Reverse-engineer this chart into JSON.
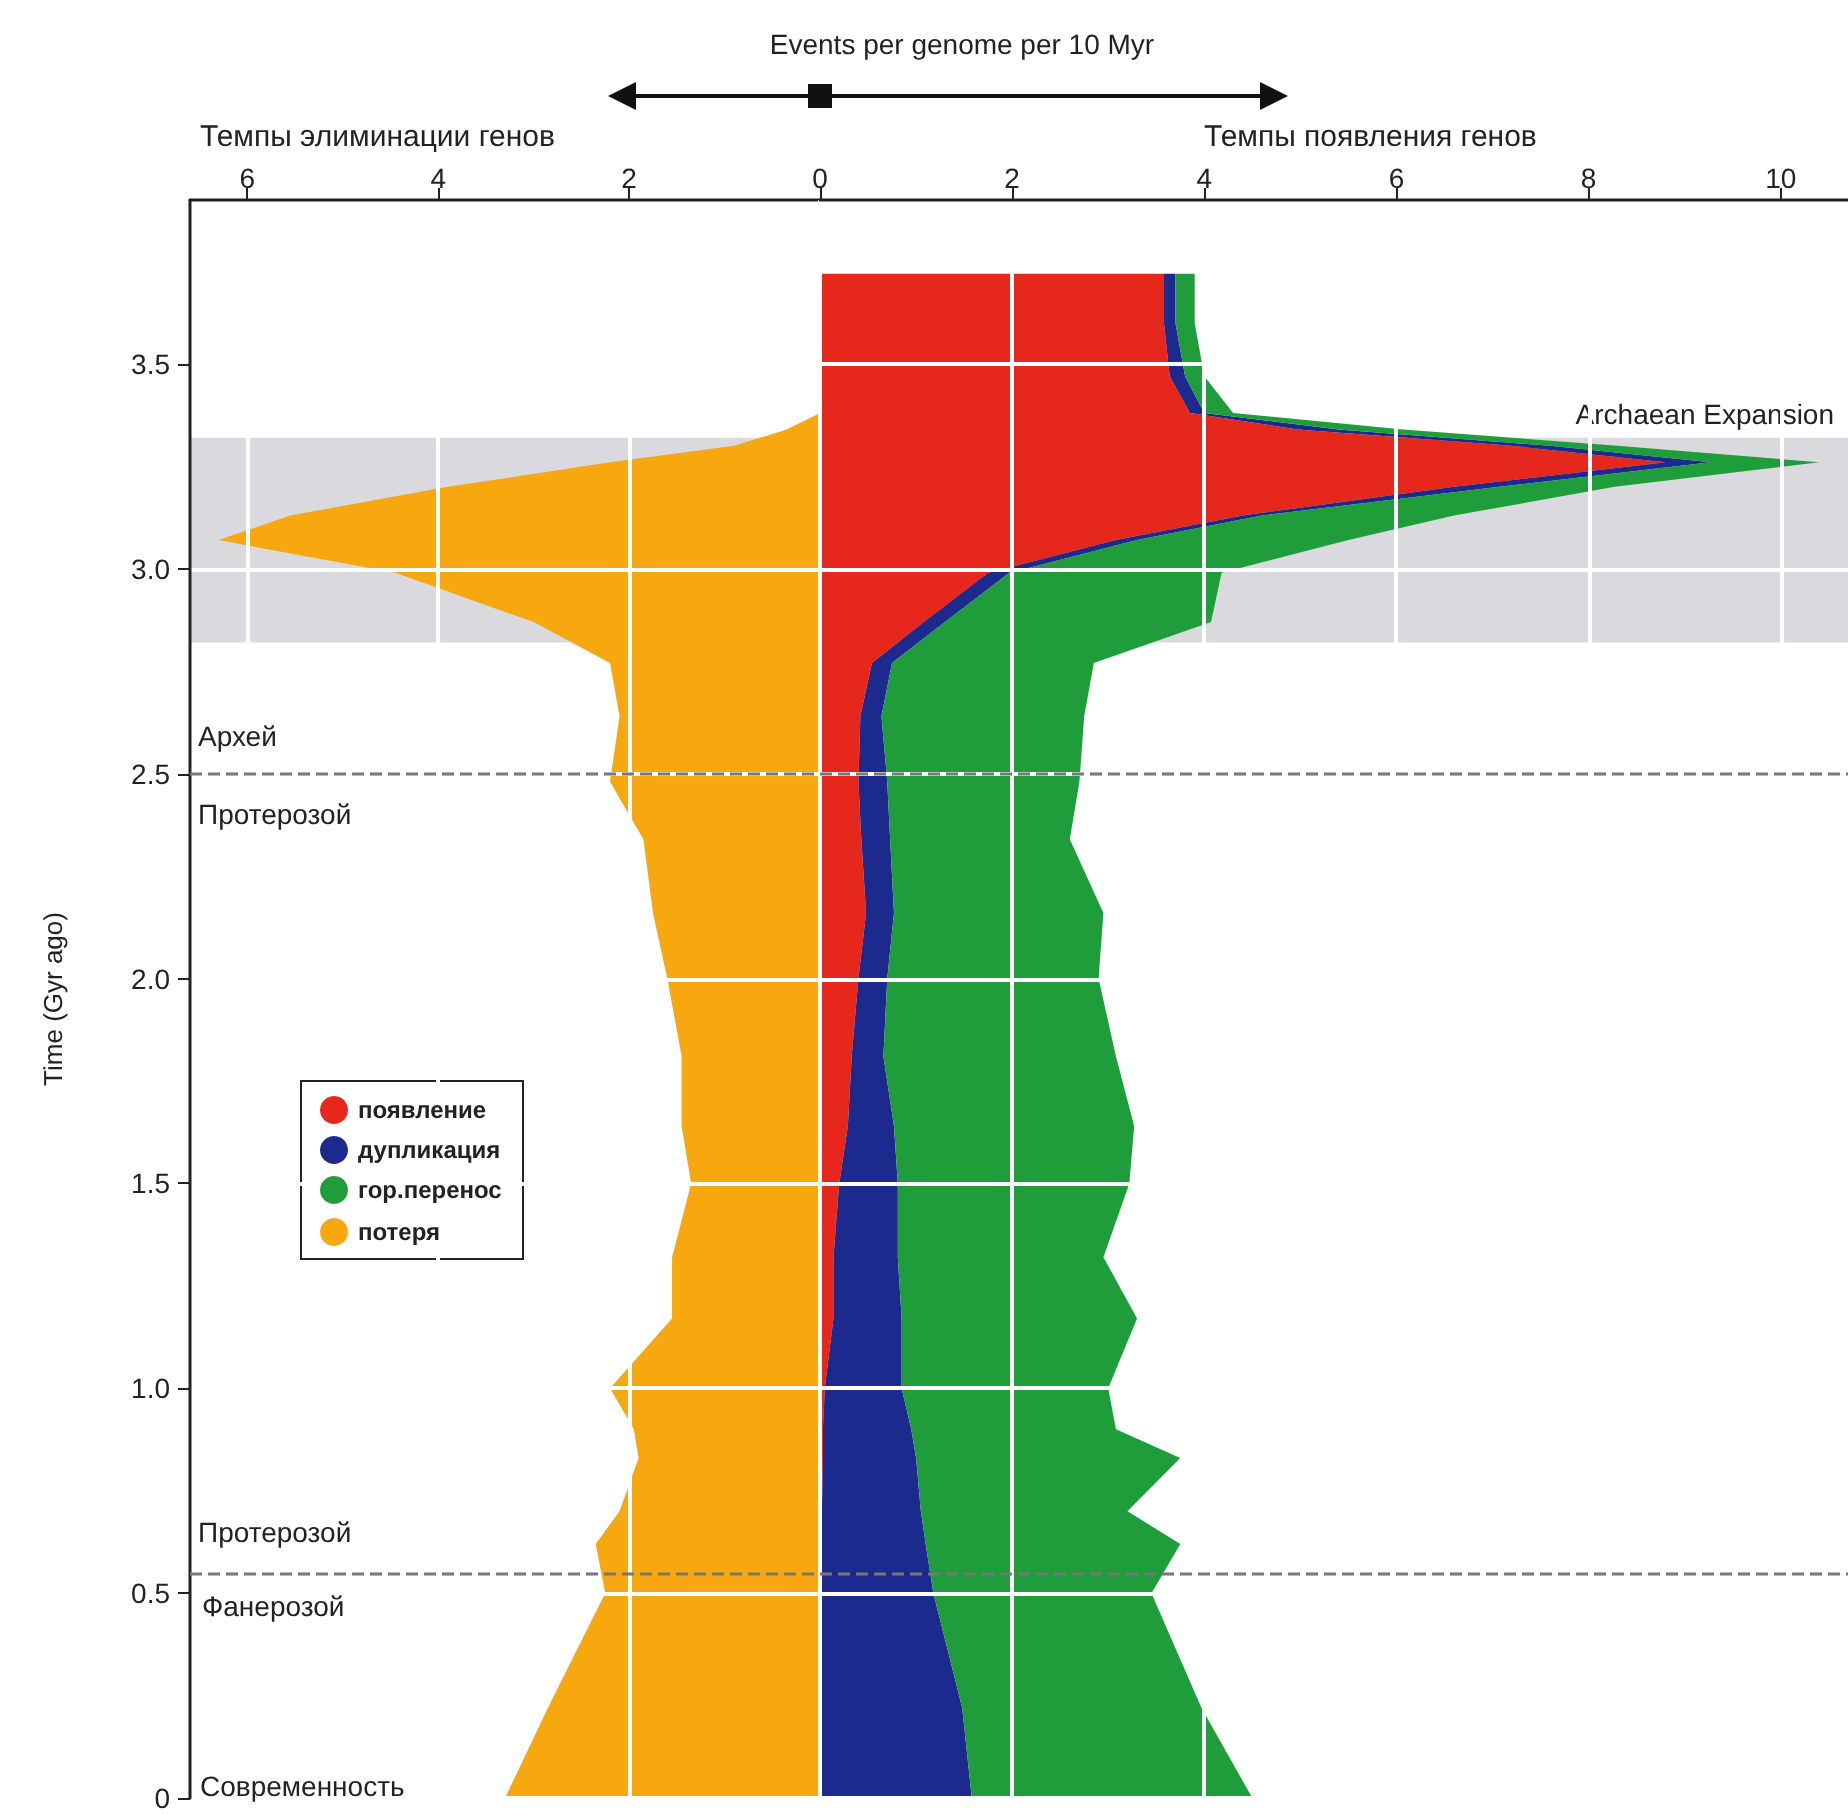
{
  "chart_data": [
    {
      "type": "area",
      "orientation": "horizontal",
      "ylabel": "Time (Gyr ago)",
      "annotations": [
        "Темпы элиминации генов",
        "Архей",
        "Протерозой",
        "Протерозой",
        "Фанерозой",
        "Современность"
      ],
      "x": [
        0,
        0.22,
        0.5,
        0.62,
        0.7,
        0.83,
        0.9,
        1.0,
        1.17,
        1.32,
        1.5,
        1.64,
        1.81,
        2.0,
        2.16,
        2.34,
        2.48,
        2.64,
        2.77,
        2.87,
        2.99,
        3.07,
        3.13,
        3.2,
        3.26,
        3.3,
        3.34,
        3.38,
        3.47,
        3.6,
        3.72
      ],
      "series": [
        {
          "name": "потеря",
          "color": "#f6a80e",
          "values": [
            -3.3,
            -2.85,
            -2.25,
            -2.35,
            -2.1,
            -1.9,
            -1.95,
            -2.2,
            -1.55,
            -1.55,
            -1.35,
            -1.45,
            -1.45,
            -1.6,
            -1.75,
            -1.85,
            -2.2,
            -2.1,
            -2.2,
            -3.0,
            -4.45,
            -6.3,
            -5.55,
            -3.9,
            -2.2,
            -0.9,
            -0.35,
            0,
            0,
            0,
            0
          ]
        }
      ],
      "xlim": [
        -6.6,
        0
      ],
      "xticks": [
        {
          "value": -6,
          "label": "6"
        },
        {
          "value": -4,
          "label": "4"
        },
        {
          "value": -2,
          "label": "2"
        }
      ],
      "ylim": [
        0,
        3.9
      ],
      "yticks": [
        0,
        0.5,
        {
          "value": 1,
          "label": "1.0"
        },
        1.5,
        {
          "value": 2,
          "label": "2.0"
        },
        2.5,
        {
          "value": 3,
          "label": "3.0"
        },
        3.5
      ],
      "grid": true,
      "legend": "left",
      "bands": [
        {
          "axis": "y",
          "from": 2.82,
          "to": 3.32,
          "color": "#d9d9de"
        }
      ],
      "ref_lines": [
        {
          "axis": "y",
          "value": 2.5,
          "line_style": "dashed"
        },
        {
          "axis": "y",
          "value": 0.55,
          "line_style": "dashed"
        }
      ]
    },
    {
      "type": "area",
      "orientation": "horizontal",
      "stacked": true,
      "title": "Events per genome per 10 Myr",
      "annotations": [
        "Темпы появления генов"
      ],
      "x": [
        0,
        0.22,
        0.5,
        0.62,
        0.7,
        0.83,
        0.9,
        1.0,
        1.17,
        1.32,
        1.5,
        1.64,
        1.81,
        2.0,
        2.16,
        2.34,
        2.48,
        2.64,
        2.77,
        2.87,
        2.99,
        3.07,
        3.13,
        3.2,
        3.26,
        3.3,
        3.34,
        3.38,
        3.47,
        3.6,
        3.72
      ],
      "series": [
        {
          "name": "появление",
          "color": "#e5281b",
          "values": [
            0,
            0,
            0,
            0.02,
            0.02,
            0.03,
            0.03,
            0.05,
            0.14,
            0.14,
            0.2,
            0.29,
            0.33,
            0.4,
            0.48,
            0.43,
            0.4,
            0.42,
            0.54,
            1.08,
            1.75,
            3.08,
            4.4,
            6.6,
            8.8,
            7.2,
            4.97,
            3.85,
            3.64,
            3.58,
            3.58
          ]
        },
        {
          "name": "дупликация",
          "color": "#1b2a8c",
          "values": [
            1.58,
            1.48,
            1.18,
            1.08,
            1.03,
            0.97,
            0.92,
            0.8,
            0.71,
            0.67,
            0.61,
            0.48,
            0.33,
            0.3,
            0.29,
            0.3,
            0.3,
            0.22,
            0.21,
            0.22,
            0.22,
            0.22,
            0.2,
            0.47,
            0.47,
            0.4,
            0.43,
            0.15,
            0.16,
            0.12,
            0.12
          ]
        },
        {
          "name": "гор.перенос",
          "color": "#1f9d3b",
          "values": [
            2.92,
            2.49,
            2.27,
            2.65,
            2.15,
            2.75,
            2.13,
            2.15,
            2.45,
            2.14,
            2.41,
            2.5,
            2.42,
            2.2,
            2.18,
            1.87,
            2.0,
            2.11,
            2.1,
            2.77,
            2.21,
            2.2,
            2.0,
            1.2,
            1.13,
            0.7,
            0.67,
            0.3,
            0.2,
            0.2,
            0.2
          ]
        }
      ],
      "xlim": [
        0,
        10.7
      ],
      "xticks": [
        0,
        2,
        4,
        6,
        8,
        10
      ],
      "ylim": [
        0,
        3.9
      ],
      "yticks": [
        0,
        0.5,
        1,
        1.5,
        2,
        2.5,
        3,
        3.5
      ],
      "tick_labels": "x",
      "grid": true,
      "legend": "left",
      "bands": [
        {
          "axis": "y",
          "from": 2.82,
          "to": 3.32,
          "label": "Archaean Expansion",
          "color": "#d9d9de"
        }
      ],
      "ref_lines": [
        {
          "axis": "y",
          "value": 2.5,
          "line_style": "dashed"
        },
        {
          "axis": "y",
          "value": 0.55,
          "line_style": "dashed"
        }
      ]
    }
  ]
}
